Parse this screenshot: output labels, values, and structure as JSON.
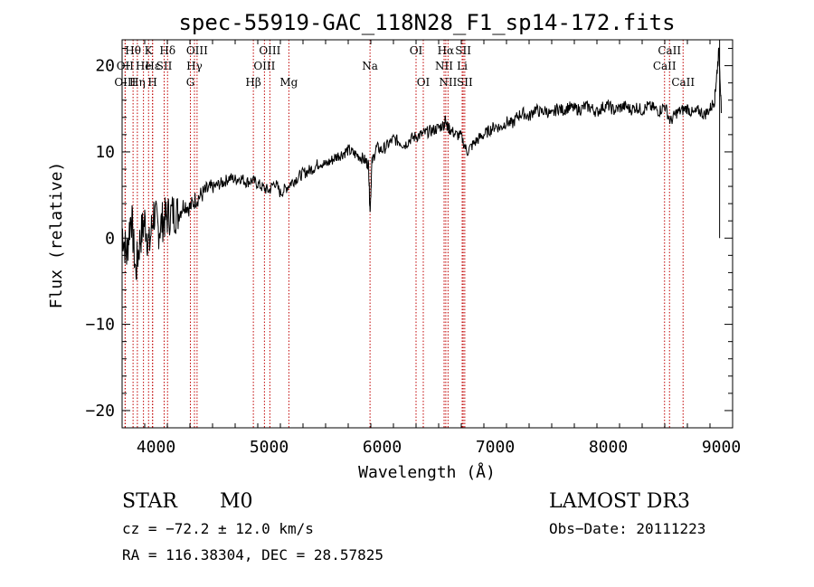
{
  "chart_data": {
    "type": "line",
    "title": "spec-55919-GAC_118N28_F1_sp14-172.fits",
    "xlabel": "Wavelength (Å)",
    "ylabel": "Flux (relative)",
    "xlim": [
      3700,
      9100
    ],
    "ylim": [
      -22,
      23
    ],
    "xticks": [
      4000,
      5000,
      6000,
      7000,
      8000,
      9000
    ],
    "yticks": [
      -20,
      -10,
      0,
      10,
      20
    ],
    "series": [
      {
        "name": "spectrum",
        "x": [
          3700,
          3740,
          3780,
          3820,
          3860,
          3900,
          3940,
          3980,
          4020,
          4060,
          4100,
          4150,
          4200,
          4250,
          4300,
          4350,
          4400,
          4450,
          4500,
          4550,
          4600,
          4650,
          4700,
          4750,
          4800,
          4850,
          4900,
          4950,
          5000,
          5050,
          5100,
          5150,
          5200,
          5250,
          5300,
          5350,
          5400,
          5450,
          5500,
          5550,
          5600,
          5650,
          5700,
          5750,
          5800,
          5850,
          5880,
          5893,
          5910,
          5950,
          6000,
          6050,
          6100,
          6150,
          6200,
          6250,
          6300,
          6350,
          6400,
          6450,
          6500,
          6550,
          6562,
          6580,
          6600,
          6650,
          6700,
          6750,
          6800,
          6850,
          6900,
          6950,
          7000,
          7050,
          7100,
          7150,
          7200,
          7250,
          7300,
          7350,
          7400,
          7450,
          7500,
          7550,
          7600,
          7650,
          7700,
          7750,
          7800,
          7850,
          7900,
          7950,
          8000,
          8050,
          8100,
          8150,
          8200,
          8250,
          8300,
          8350,
          8400,
          8450,
          8500,
          8550,
          8600,
          8650,
          8700,
          8750,
          8800,
          8850,
          8900,
          8940,
          8960,
          8980,
          9000
        ],
        "values": [
          1,
          -2,
          3,
          -4,
          0,
          2,
          -1,
          3,
          1,
          2,
          2.5,
          3,
          2.8,
          4,
          3.5,
          4.5,
          5,
          5.5,
          5.8,
          6.2,
          6.5,
          7,
          6.8,
          7,
          6.5,
          6.7,
          6.3,
          5.8,
          5.5,
          6.5,
          5.2,
          5.8,
          6.5,
          7,
          7.5,
          7.8,
          8.2,
          8.8,
          8.5,
          9,
          9.5,
          9.8,
          10.2,
          9.8,
          9.5,
          9,
          8.5,
          3,
          8.8,
          10.5,
          10.2,
          10.8,
          11.5,
          11.2,
          10.8,
          11.5,
          11.8,
          12,
          12.3,
          12.5,
          12.8,
          13.2,
          14,
          12.8,
          12.6,
          12,
          11.8,
          10,
          10.8,
          11.5,
          12,
          12.5,
          13,
          12.8,
          13.5,
          13.2,
          14.2,
          14.5,
          14,
          15,
          14.6,
          14.8,
          14.2,
          15.1,
          14.8,
          15.2,
          15,
          14.9,
          15.3,
          15.1,
          14.6,
          15.2,
          15.4,
          14.8,
          15.1,
          15.3,
          14.9,
          15.2,
          14.8,
          15.3,
          15.1,
          14.7,
          15.4,
          13.5,
          14.5,
          14.8,
          15.1,
          14.4,
          14.8,
          14.3,
          15,
          16,
          19,
          22,
          14.5
        ]
      }
    ],
    "spectral_lines": [
      {
        "label": "Hθ",
        "wl": 3797,
        "row": 0
      },
      {
        "label": "OII",
        "wl": 3727,
        "row": 1
      },
      {
        "label": "OIII",
        "wl": 3727,
        "row": 2
      },
      {
        "label": "K",
        "wl": 3934,
        "row": 0
      },
      {
        "label": "Hε",
        "wl": 3970,
        "row": 1
      },
      {
        "label": "Hη",
        "wl": 3835,
        "row": 2
      },
      {
        "label": "He",
        "wl": 3889,
        "row": 1
      },
      {
        "label": "H",
        "wl": 3969,
        "row": 2
      },
      {
        "label": "SII",
        "wl": 4072,
        "row": 1
      },
      {
        "label": "Hδ",
        "wl": 4102,
        "row": 0
      },
      {
        "label": "OIII",
        "wl": 4363,
        "row": 0
      },
      {
        "label": "Hγ",
        "wl": 4340,
        "row": 1
      },
      {
        "label": "G",
        "wl": 4304,
        "row": 2
      },
      {
        "label": "Hβ",
        "wl": 4861,
        "row": 2
      },
      {
        "label": "OIII",
        "wl": 4959,
        "row": 1
      },
      {
        "label": "OIII",
        "wl": 5007,
        "row": 0
      },
      {
        "label": "Mg",
        "wl": 5175,
        "row": 2
      },
      {
        "label": "Na",
        "wl": 5893,
        "row": 1
      },
      {
        "label": "OI",
        "wl": 6300,
        "row": 0
      },
      {
        "label": "OI",
        "wl": 6364,
        "row": 2
      },
      {
        "label": "Hα",
        "wl": 6563,
        "row": 0
      },
      {
        "label": "NII",
        "wl": 6548,
        "row": 1
      },
      {
        "label": "NII",
        "wl": 6583,
        "row": 2
      },
      {
        "label": "SII",
        "wl": 6717,
        "row": 0
      },
      {
        "label": "Li",
        "wl": 6708,
        "row": 1
      },
      {
        "label": "SII",
        "wl": 6731,
        "row": 2
      },
      {
        "label": "CaII",
        "wl": 8542,
        "row": 0
      },
      {
        "label": "CaII",
        "wl": 8498,
        "row": 1
      },
      {
        "label": "CaII",
        "wl": 8662,
        "row": 2
      }
    ]
  },
  "info": {
    "object_class": "STAR",
    "subclass": "M0",
    "survey": "LAMOST DR3",
    "redshift": "cz = −72.2 ± 12.0 km/s",
    "obs_date": "Obs−Date: 20111223",
    "coords": "RA = 116.38304, DEC =  28.57825"
  }
}
